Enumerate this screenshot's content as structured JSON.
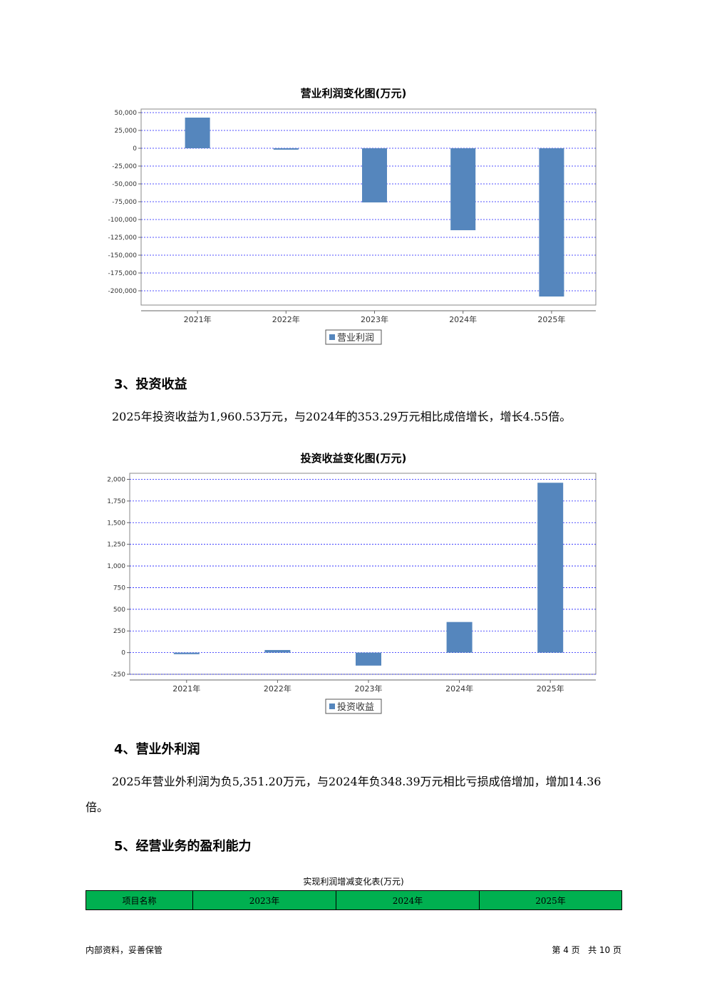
{
  "chart1": {
    "title": "营业利润变化图(万元)",
    "legend": "营业利润"
  },
  "section3": {
    "heading": "3、投资收益",
    "para": "2025年投资收益为1,960.53万元，与2024年的353.29万元相比成倍增长，增长4.55倍。"
  },
  "chart2": {
    "title": "投资收益变化图(万元)",
    "legend": "投资收益"
  },
  "section4": {
    "heading": "4、营业外利润",
    "para_line1": "2025年营业外利润为负5,351.20万元，与2024年负348.39万元相比亏损成倍增加，增加14.36",
    "para_line2": "倍。"
  },
  "section5": {
    "heading": "5、经营业务的盈利能力"
  },
  "table": {
    "caption": "实现利润增减变化表(万元)",
    "headers": [
      "项目名称",
      "2023年",
      "2024年",
      "2025年"
    ]
  },
  "footer": {
    "left": "内部资料，妥善保管",
    "right": "第 4 页   共 10 页"
  },
  "colors": {
    "bar": "#5586bd",
    "grid": "#1a1aff",
    "table_header": "#00b050"
  },
  "chart_data": [
    {
      "type": "bar",
      "title": "营业利润变化图(万元)",
      "categories": [
        "2021年",
        "2022年",
        "2023年",
        "2024年",
        "2025年"
      ],
      "series": [
        {
          "name": "营业利润",
          "values": [
            43000,
            -2000,
            -76000,
            -115000,
            -208000
          ]
        }
      ],
      "yticks": [
        50000,
        25000,
        0,
        -25000,
        -50000,
        -75000,
        -100000,
        -125000,
        -150000,
        -175000,
        -200000
      ],
      "ytick_labels": [
        "50,000",
        "25,000",
        "0",
        "-25,000",
        "-50,000",
        "-75,000",
        "-100,000",
        "-125,000",
        "-150,000",
        "-175,000",
        "-200,000"
      ],
      "ylim": [
        -220000,
        55000
      ],
      "grid": true,
      "legend": "bottom"
    },
    {
      "type": "bar",
      "title": "投资收益变化图(万元)",
      "categories": [
        "2021年",
        "2022年",
        "2023年",
        "2024年",
        "2025年"
      ],
      "series": [
        {
          "name": "投资收益",
          "values": [
            -18,
            30,
            -150,
            353.29,
            1960.53
          ]
        }
      ],
      "yticks": [
        2000,
        1750,
        1500,
        1250,
        1000,
        750,
        500,
        250,
        0,
        -250
      ],
      "ytick_labels": [
        "2,000",
        "1,750",
        "1,500",
        "1,250",
        "1,000",
        "750",
        "500",
        "250",
        "0",
        "-250"
      ],
      "ylim": [
        -250,
        2070
      ],
      "grid": true,
      "legend": "bottom"
    }
  ]
}
